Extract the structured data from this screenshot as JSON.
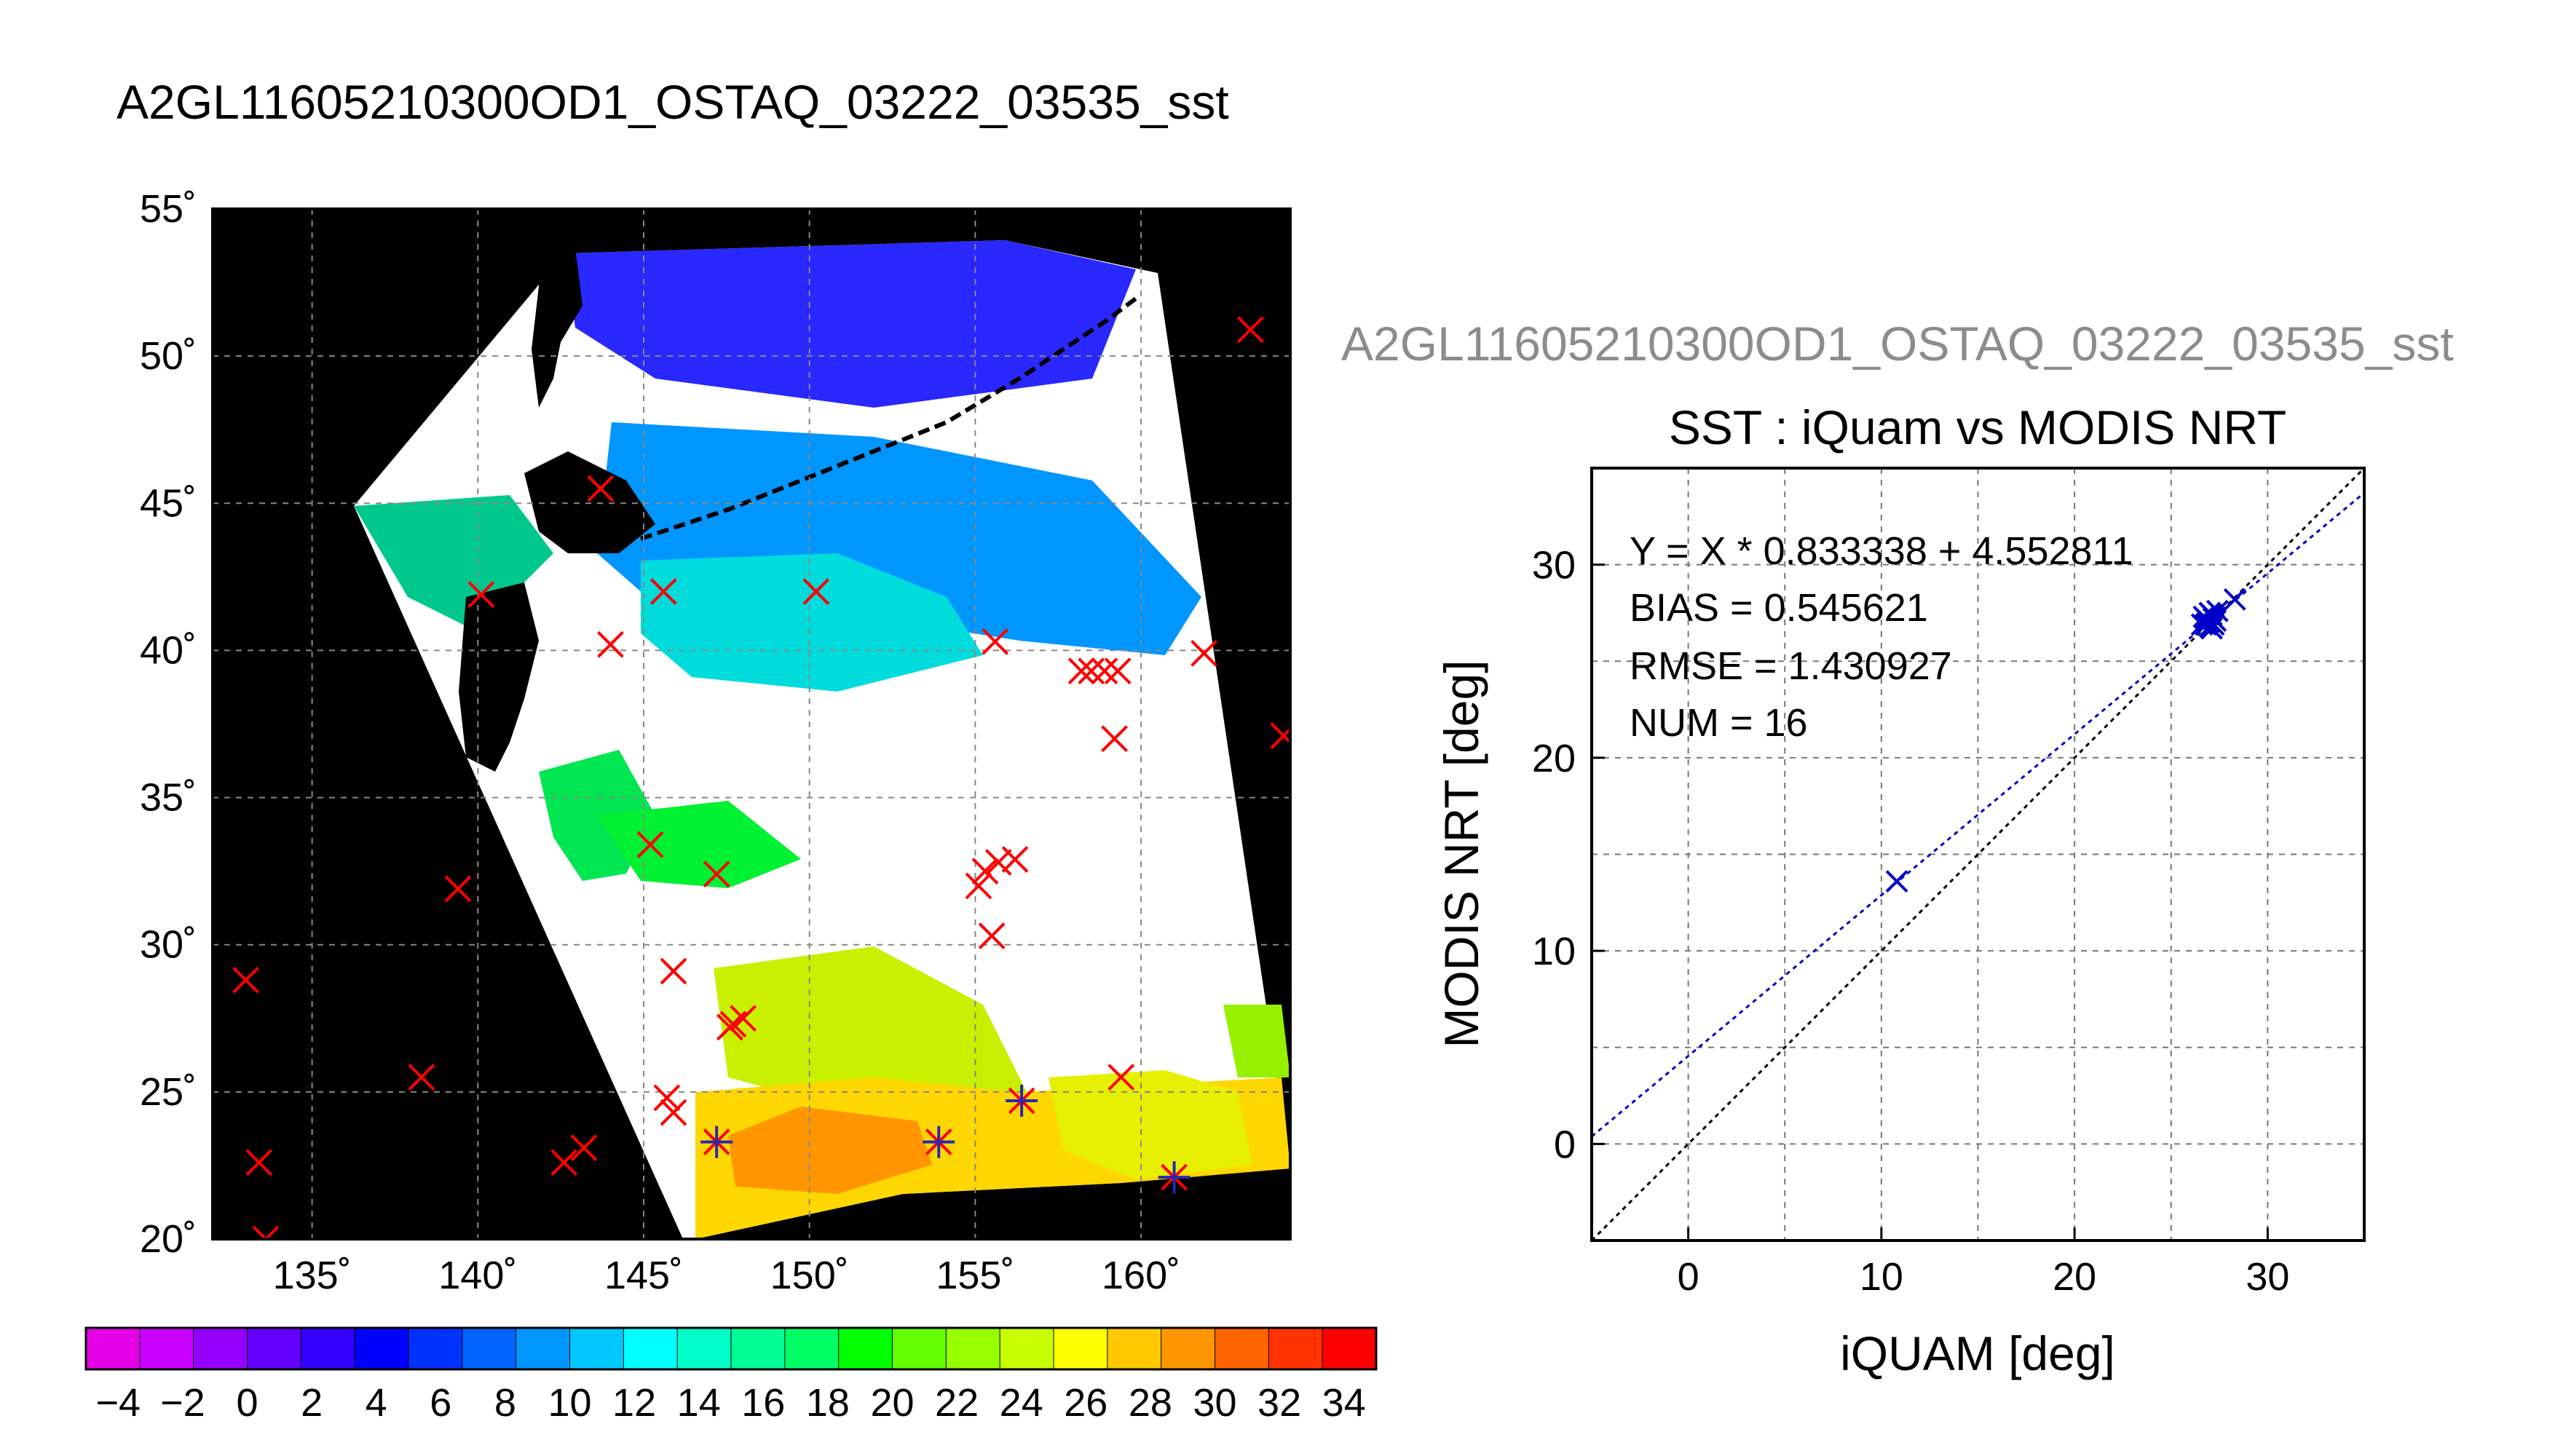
{
  "figure_title": "A2GL11605210300OD1_OSTAQ_03222_03535_sst",
  "scatter_subtitle": "A2GL11605210300OD1_OSTAQ_03222_03535_sst",
  "colorbar": {
    "ticks": [
      "−4",
      "−2",
      "0",
      "2",
      "4",
      "6",
      "8",
      "10",
      "12",
      "14",
      "16",
      "18",
      "20",
      "22",
      "24",
      "26",
      "28",
      "30",
      "32",
      "34"
    ],
    "colors": [
      "#e600e6",
      "#c800ff",
      "#9600ff",
      "#6400ff",
      "#3200ff",
      "#0000ff",
      "#0032ff",
      "#0064ff",
      "#0096ff",
      "#00c8ff",
      "#00ffff",
      "#00ffc8",
      "#00ff96",
      "#00ff64",
      "#00ff00",
      "#64ff00",
      "#96ff00",
      "#c8ff00",
      "#ffff00",
      "#ffc800",
      "#ff9600",
      "#ff6400",
      "#ff3200",
      "#ff0000"
    ]
  },
  "chart_data": [
    {
      "type": "map",
      "title": "A2GL11605210300OD1_OSTAQ_03222_03535_sst",
      "lon_ticks": [
        "135˚",
        "140˚",
        "145˚",
        "150˚",
        "155˚",
        "160˚"
      ],
      "lat_ticks": [
        "55˚",
        "50˚",
        "45˚",
        "40˚",
        "35˚",
        "30˚",
        "25˚",
        "20˚"
      ],
      "lon_values": [
        135,
        140,
        145,
        150,
        155,
        160
      ],
      "lat_values": [
        55,
        50,
        45,
        40,
        35,
        30,
        25,
        20
      ],
      "xlim": [
        132,
        164.5
      ],
      "ylim": [
        20,
        55
      ],
      "grid": true,
      "colorbar_range": [
        -5,
        35
      ],
      "markers_red_x": [
        [
          143.7,
          45.5
        ],
        [
          140.1,
          41.9
        ],
        [
          145.6,
          42.0
        ],
        [
          150.2,
          42.0
        ],
        [
          144.0,
          40.2
        ],
        [
          155.6,
          40.3
        ],
        [
          158.2,
          39.3
        ],
        [
          158.5,
          39.3
        ],
        [
          158.9,
          39.3
        ],
        [
          159.3,
          39.3
        ],
        [
          161.9,
          39.9
        ],
        [
          163.3,
          50.9
        ],
        [
          164.3,
          37.1
        ],
        [
          159.2,
          37.0
        ],
        [
          145.2,
          33.4
        ],
        [
          147.2,
          32.4
        ],
        [
          155.1,
          32.0
        ],
        [
          155.3,
          32.5
        ],
        [
          155.7,
          32.8
        ],
        [
          156.2,
          32.9
        ],
        [
          139.4,
          31.9
        ],
        [
          133.0,
          28.8
        ],
        [
          145.9,
          29.1
        ],
        [
          155.5,
          30.3
        ],
        [
          147.7,
          27.3
        ],
        [
          148.0,
          27.5
        ],
        [
          147.6,
          27.2
        ],
        [
          138.3,
          25.5
        ],
        [
          145.7,
          24.8
        ],
        [
          145.9,
          24.3
        ],
        [
          159.4,
          25.5
        ],
        [
          156.4,
          24.7
        ],
        [
          147.2,
          23.3
        ],
        [
          153.9,
          23.3
        ],
        [
          143.2,
          23.1
        ],
        [
          142.6,
          22.6
        ],
        [
          133.4,
          22.6
        ],
        [
          161.0,
          22.1
        ],
        [
          133.6,
          20.0
        ]
      ],
      "markers_blue_plus": [
        [
          156.4,
          24.7
        ],
        [
          147.2,
          23.3
        ],
        [
          153.9,
          23.3
        ],
        [
          161.0,
          22.1
        ]
      ]
    },
    {
      "type": "scatter",
      "title": "SST : iQuam vs MODIS NRT",
      "xlabel": "iQUAM [deg]",
      "ylabel": "MODIS NRT [deg]",
      "xlim": [
        -5,
        35
      ],
      "ylim": [
        -5,
        35
      ],
      "xticks": [
        0,
        10,
        20,
        30
      ],
      "yticks": [
        0,
        10,
        20,
        30
      ],
      "grid": true,
      "annotations": [
        "Y = X * 0.833338 + 4.552811",
        "BIAS = 0.545621",
        "RMSE = 1.430927",
        "NUM = 16"
      ],
      "fit_line": {
        "slope": 0.833338,
        "intercept": 4.552811,
        "color": "#0000c8"
      },
      "identity_line": {
        "slope": 1,
        "intercept": 0,
        "color": "#000000"
      },
      "points": [
        [
          10.8,
          13.6
        ],
        [
          26.6,
          26.9
        ],
        [
          26.8,
          27.2
        ],
        [
          26.9,
          27.0
        ],
        [
          27.0,
          26.8
        ],
        [
          27.1,
          27.4
        ],
        [
          27.2,
          26.9
        ],
        [
          27.3,
          27.1
        ],
        [
          26.7,
          27.3
        ],
        [
          27.0,
          27.5
        ],
        [
          27.4,
          27.6
        ],
        [
          26.9,
          27.1
        ],
        [
          28.3,
          28.2
        ],
        [
          27.1,
          26.7
        ],
        [
          26.8,
          26.9
        ],
        [
          27.2,
          27.2
        ]
      ],
      "point_color": "#0000c8"
    }
  ]
}
